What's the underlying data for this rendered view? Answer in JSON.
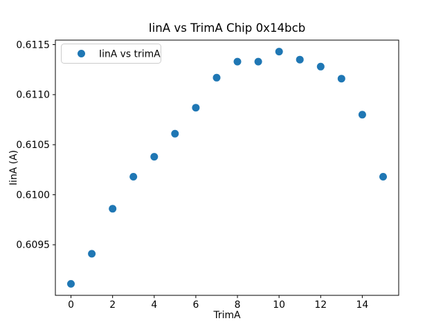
{
  "chart_data": {
    "type": "scatter",
    "title": "IinA vs TrimA Chip 0x14bcb",
    "xlabel": "TrimA",
    "ylabel": "IinA (A)",
    "legend": {
      "label": "IinA vs trimA",
      "position": "upper left"
    },
    "marker_color": "#1f77b4",
    "x": [
      0,
      1,
      2,
      3,
      4,
      5,
      6,
      7,
      8,
      9,
      10,
      11,
      12,
      13,
      14,
      15
    ],
    "y": [
      0.60911,
      0.60941,
      0.60986,
      0.61018,
      0.61038,
      0.61061,
      0.61087,
      0.61117,
      0.61133,
      0.61133,
      0.61143,
      0.61135,
      0.61128,
      0.61116,
      0.6108,
      0.61018
    ],
    "xticks": [
      0,
      2,
      4,
      6,
      8,
      10,
      12,
      14
    ],
    "xtick_labels": [
      "0",
      "2",
      "4",
      "6",
      "8",
      "10",
      "12",
      "14"
    ],
    "yticks": [
      0.6095,
      0.61,
      0.6105,
      0.611,
      0.6115
    ],
    "ytick_labels": [
      "0.6095",
      "0.6100",
      "0.6105",
      "0.6110",
      "0.6115"
    ],
    "xlim": [
      -0.75,
      15.75
    ],
    "ylim": [
      0.608995,
      0.611545
    ],
    "grid": false,
    "background": "#ffffff",
    "spine_color": "#000000"
  }
}
